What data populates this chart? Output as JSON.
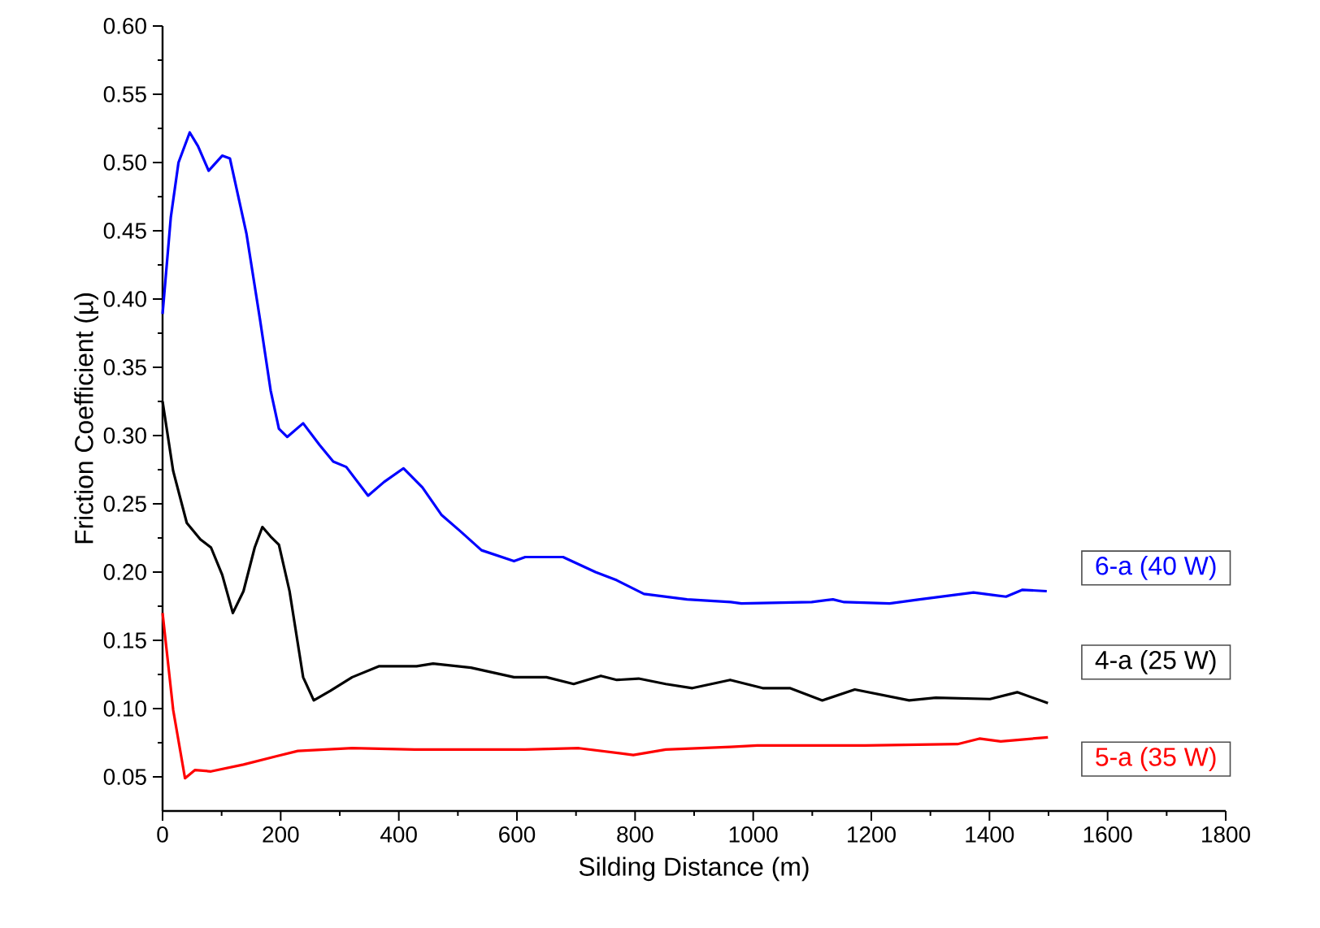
{
  "chart_data": {
    "type": "line",
    "xlabel": "Silding Distance (m)",
    "ylabel": "Friction Coefficient (µ)",
    "xlim": [
      0,
      1800
    ],
    "xticks": [
      0,
      200,
      400,
      600,
      800,
      1000,
      1200,
      1400,
      1600,
      1800
    ],
    "ylim": [
      0.025,
      0.6
    ],
    "yticks": [
      {
        "value": 0.05,
        "label": "0.05"
      },
      {
        "value": 0.1,
        "label": "0.10"
      },
      {
        "value": 0.15,
        "label": "0.15"
      },
      {
        "value": 0.2,
        "label": "0.20"
      },
      {
        "value": 0.25,
        "label": "0.25"
      },
      {
        "value": 0.3,
        "label": "0.30"
      },
      {
        "value": 0.35,
        "label": "0.35"
      },
      {
        "value": 0.4,
        "label": "0.40"
      },
      {
        "value": 0.45,
        "label": "0.45"
      },
      {
        "value": 0.5,
        "label": "0.50"
      },
      {
        "value": 0.55,
        "label": "0.55"
      },
      {
        "value": 0.6,
        "label": "0.60"
      }
    ],
    "series": [
      {
        "name": "6-a (40 W)",
        "color": "#0000ff",
        "x": [
          0,
          14,
          27,
          46,
          60,
          78,
          101,
          114,
          142,
          165,
          183,
          197,
          211,
          238,
          266,
          289,
          311,
          348,
          375,
          408,
          440,
          472,
          504,
          540,
          595,
          614,
          678,
          733,
          769,
          815,
          888,
          962,
          980,
          1099,
          1135,
          1154,
          1231,
          1282,
          1373,
          1410,
          1428,
          1456,
          1497
        ],
        "values": [
          0.389,
          0.46,
          0.5,
          0.522,
          0.512,
          0.494,
          0.505,
          0.503,
          0.448,
          0.385,
          0.333,
          0.305,
          0.299,
          0.309,
          0.293,
          0.281,
          0.277,
          0.256,
          0.266,
          0.276,
          0.262,
          0.242,
          0.23,
          0.216,
          0.208,
          0.211,
          0.211,
          0.2,
          0.194,
          0.184,
          0.18,
          0.178,
          0.177,
          0.178,
          0.18,
          0.178,
          0.177,
          0.18,
          0.185,
          0.183,
          0.182,
          0.187,
          0.186
        ]
      },
      {
        "name": "4-a (25 W)",
        "color": "#000000",
        "x": [
          0,
          18,
          41,
          64,
          82,
          101,
          119,
          137,
          156,
          169,
          183,
          197,
          215,
          238,
          256,
          284,
          321,
          366,
          430,
          458,
          522,
          595,
          650,
          696,
          742,
          769,
          806,
          852,
          897,
          961,
          1016,
          1062,
          1117,
          1172,
          1264,
          1309,
          1401,
          1447,
          1499
        ],
        "values": [
          0.325,
          0.274,
          0.236,
          0.224,
          0.218,
          0.198,
          0.17,
          0.186,
          0.218,
          0.233,
          0.226,
          0.22,
          0.186,
          0.123,
          0.106,
          0.113,
          0.123,
          0.131,
          0.131,
          0.133,
          0.13,
          0.123,
          0.123,
          0.118,
          0.124,
          0.121,
          0.122,
          0.118,
          0.115,
          0.121,
          0.115,
          0.115,
          0.106,
          0.114,
          0.106,
          0.108,
          0.107,
          0.112,
          0.104
        ]
      },
      {
        "name": "5-a (35 W)",
        "color": "#ff0000",
        "x": [
          0,
          18,
          38,
          55,
          82,
          137,
          192,
          229,
          321,
          430,
          614,
          705,
          797,
          852,
          962,
          1007,
          1190,
          1346,
          1383,
          1419,
          1499
        ],
        "values": [
          0.17,
          0.099,
          0.049,
          0.055,
          0.054,
          0.059,
          0.065,
          0.069,
          0.071,
          0.07,
          0.07,
          0.071,
          0.066,
          0.07,
          0.072,
          0.073,
          0.073,
          0.074,
          0.078,
          0.076,
          0.079
        ]
      }
    ]
  }
}
